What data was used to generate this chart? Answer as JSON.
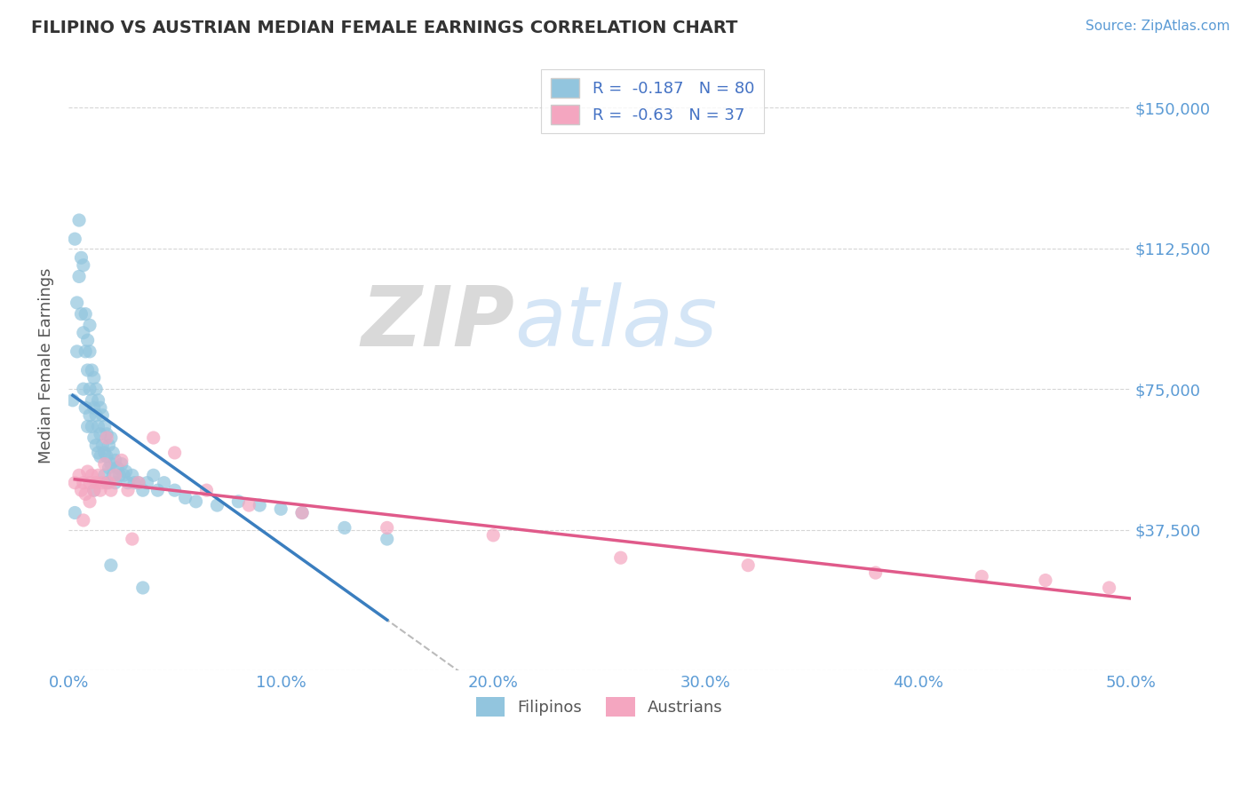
{
  "title": "FILIPINO VS AUSTRIAN MEDIAN FEMALE EARNINGS CORRELATION CHART",
  "source": "Source: ZipAtlas.com",
  "ylabel": "Median Female Earnings",
  "xlim": [
    0.0,
    0.5
  ],
  "ylim": [
    0,
    162500
  ],
  "yticks": [
    0,
    37500,
    75000,
    112500,
    150000
  ],
  "ytick_labels": [
    "",
    "$37,500",
    "$75,000",
    "$112,500",
    "$150,000"
  ],
  "xticks": [
    0.0,
    0.1,
    0.2,
    0.3,
    0.4,
    0.5
  ],
  "xtick_labels": [
    "0.0%",
    "10.0%",
    "20.0%",
    "30.0%",
    "40.0%",
    "50.0%"
  ],
  "filipino_R": -0.187,
  "filipino_N": 80,
  "austrian_R": -0.63,
  "austrian_N": 37,
  "filipino_color": "#92c5de",
  "austrian_color": "#f4a6c0",
  "filipino_trend_color": "#3a7ebf",
  "austrian_trend_color": "#e05a8a",
  "dashed_line_color": "#aaaaaa",
  "grid_color": "#cccccc",
  "title_color": "#333333",
  "axis_label_color": "#555555",
  "tick_color": "#5b9bd5",
  "legend_R_color": "#4472c4",
  "watermark_ZIP": "ZIP",
  "watermark_atlas": "atlas",
  "watermark_ZIP_color": "#c0c0c0",
  "watermark_atlas_color": "#b8d4f0",
  "filipino_scatter_x": [
    0.002,
    0.003,
    0.004,
    0.004,
    0.005,
    0.005,
    0.006,
    0.006,
    0.007,
    0.007,
    0.007,
    0.008,
    0.008,
    0.008,
    0.009,
    0.009,
    0.009,
    0.01,
    0.01,
    0.01,
    0.01,
    0.011,
    0.011,
    0.011,
    0.012,
    0.012,
    0.012,
    0.013,
    0.013,
    0.013,
    0.014,
    0.014,
    0.014,
    0.015,
    0.015,
    0.015,
    0.016,
    0.016,
    0.017,
    0.017,
    0.017,
    0.018,
    0.018,
    0.018,
    0.019,
    0.019,
    0.02,
    0.02,
    0.021,
    0.021,
    0.022,
    0.022,
    0.023,
    0.024,
    0.025,
    0.026,
    0.027,
    0.028,
    0.03,
    0.031,
    0.033,
    0.035,
    0.037,
    0.04,
    0.042,
    0.045,
    0.05,
    0.055,
    0.06,
    0.07,
    0.08,
    0.09,
    0.1,
    0.11,
    0.13,
    0.15,
    0.003,
    0.012,
    0.02,
    0.035
  ],
  "filipino_scatter_y": [
    72000,
    115000,
    98000,
    85000,
    120000,
    105000,
    110000,
    95000,
    90000,
    108000,
    75000,
    95000,
    85000,
    70000,
    88000,
    80000,
    65000,
    92000,
    75000,
    68000,
    85000,
    80000,
    72000,
    65000,
    78000,
    70000,
    62000,
    75000,
    68000,
    60000,
    72000,
    65000,
    58000,
    70000,
    63000,
    57000,
    68000,
    60000,
    65000,
    58000,
    52000,
    63000,
    57000,
    50000,
    60000,
    54000,
    62000,
    55000,
    58000,
    52000,
    56000,
    50000,
    54000,
    52000,
    55000,
    52000,
    53000,
    50000,
    52000,
    50000,
    50000,
    48000,
    50000,
    52000,
    48000,
    50000,
    48000,
    46000,
    45000,
    44000,
    45000,
    44000,
    43000,
    42000,
    38000,
    35000,
    42000,
    48000,
    28000,
    22000
  ],
  "austrian_scatter_x": [
    0.003,
    0.005,
    0.006,
    0.007,
    0.008,
    0.009,
    0.01,
    0.01,
    0.011,
    0.012,
    0.013,
    0.014,
    0.015,
    0.016,
    0.017,
    0.018,
    0.019,
    0.02,
    0.022,
    0.025,
    0.028,
    0.033,
    0.04,
    0.05,
    0.065,
    0.085,
    0.11,
    0.15,
    0.2,
    0.26,
    0.32,
    0.38,
    0.43,
    0.46,
    0.49,
    0.007,
    0.03
  ],
  "austrian_scatter_y": [
    50000,
    52000,
    48000,
    50000,
    47000,
    53000,
    50000,
    45000,
    52000,
    48000,
    50000,
    52000,
    48000,
    50000,
    55000,
    62000,
    50000,
    48000,
    52000,
    56000,
    48000,
    50000,
    62000,
    58000,
    48000,
    44000,
    42000,
    38000,
    36000,
    30000,
    28000,
    26000,
    25000,
    24000,
    22000,
    40000,
    35000
  ]
}
